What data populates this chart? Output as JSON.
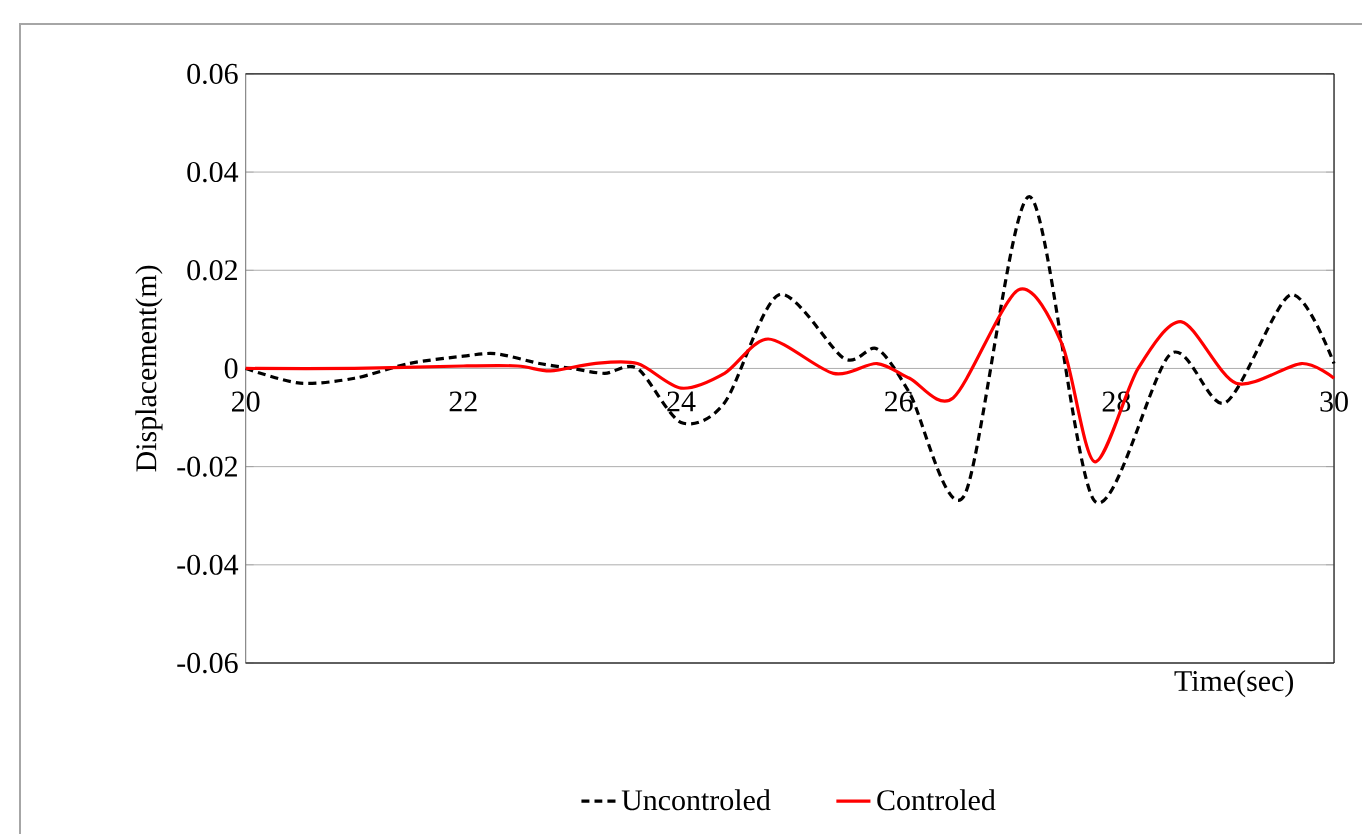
{
  "chart_data": {
    "type": "line",
    "xlabel": "Time(sec)",
    "ylabel": "Displacement(m)",
    "xlim": [
      20,
      30
    ],
    "xticks": [
      20,
      22,
      24,
      26,
      28,
      30
    ],
    "ylim": [
      -0.06,
      0.06
    ],
    "yticks": [
      -0.06,
      -0.04,
      -0.02,
      0,
      0.02,
      0.04,
      0.06
    ],
    "grid": "y",
    "legend": "bottom",
    "series": [
      {
        "name": "Uncontroled",
        "color": "#000000",
        "line_style": "dashed",
        "x": [
          20,
          20.5,
          21,
          21.5,
          22,
          22.3,
          22.7,
          23,
          23.3,
          23.6,
          24,
          24.4,
          24.9,
          25.5,
          25.8,
          26.1,
          26.6,
          27.2,
          27.8,
          28.5,
          29,
          29.6,
          30
        ],
        "values": [
          0,
          -0.003,
          -0.002,
          0.001,
          0.0025,
          0.003,
          0.001,
          0,
          -0.001,
          0,
          -0.011,
          -0.007,
          0.015,
          0.002,
          0.004,
          -0.005,
          -0.026,
          0.035,
          -0.027,
          0.003,
          -0.007,
          0.015,
          0.001
        ]
      },
      {
        "name": "Controled",
        "color": "#ff0000",
        "line_style": "solid",
        "x": [
          20,
          21,
          22,
          22.5,
          22.8,
          23.2,
          23.6,
          24,
          24.4,
          24.8,
          25.4,
          25.8,
          26.1,
          26.5,
          27.1,
          27.5,
          27.8,
          28.2,
          28.6,
          29.1,
          29.7,
          30
        ],
        "values": [
          0,
          0,
          0.0005,
          0.0005,
          -0.0005,
          0.001,
          0.001,
          -0.004,
          -0.001,
          0.006,
          -0.001,
          0.001,
          -0.002,
          -0.006,
          0.016,
          0.005,
          -0.019,
          0,
          0.0095,
          -0.003,
          0.001,
          -0.002
        ]
      }
    ]
  }
}
